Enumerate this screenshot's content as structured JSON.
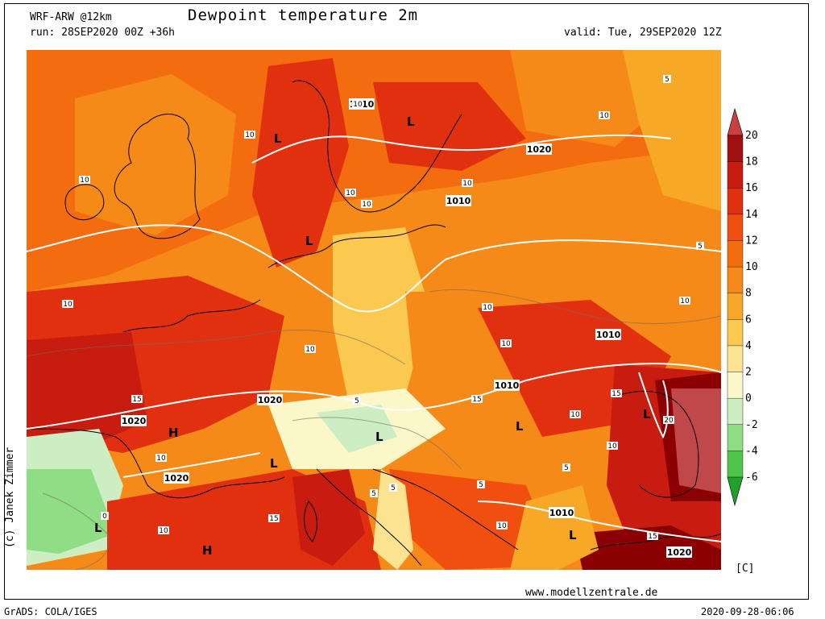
{
  "header": {
    "model": "WRF-ARW @12km",
    "title": "Dewpoint temperature 2m",
    "run": "run: 28SEP2020 00Z +36h",
    "valid": "valid: Tue, 29SEP2020 12Z"
  },
  "footer": {
    "credit": "(c) Janek Zimmer",
    "website": "www.modellzentrale.de",
    "grads": "GrADS: COLA/IGES",
    "timestamp": "2020-09-28-06:06"
  },
  "colorbar": {
    "unit": "[C]",
    "ticks": [
      "20",
      "18",
      "16",
      "14",
      "12",
      "10",
      "8",
      "6",
      "4",
      "2",
      "0",
      "-2",
      "-4",
      "-6"
    ],
    "colors": [
      "#8b0000",
      "#a01010",
      "#c81c10",
      "#e03010",
      "#f04f0f",
      "#f46c10",
      "#f58a18",
      "#f8a827",
      "#fbc850",
      "#fce392",
      "#fbf7c8",
      "#cdeec2",
      "#8fde85",
      "#4ec64a",
      "#1fa22a"
    ]
  },
  "map": {
    "pressure_labels": [
      "1020",
      "1020",
      "1020",
      "1020",
      "1020",
      "1010",
      "1010",
      "1010",
      "1010",
      "1010"
    ],
    "contour_labels": [
      "10",
      "10",
      "10",
      "10",
      "10",
      "10",
      "10",
      "10",
      "10",
      "10",
      "10",
      "10",
      "10",
      "10",
      "10",
      "10",
      "10",
      "15",
      "15",
      "15",
      "15",
      "15",
      "20",
      "5",
      "5",
      "5",
      "5",
      "5",
      "5",
      "5",
      "0"
    ],
    "centers": [
      "L",
      "L",
      "L",
      "L",
      "L",
      "L",
      "L",
      "L",
      "L",
      "H",
      "H"
    ]
  }
}
